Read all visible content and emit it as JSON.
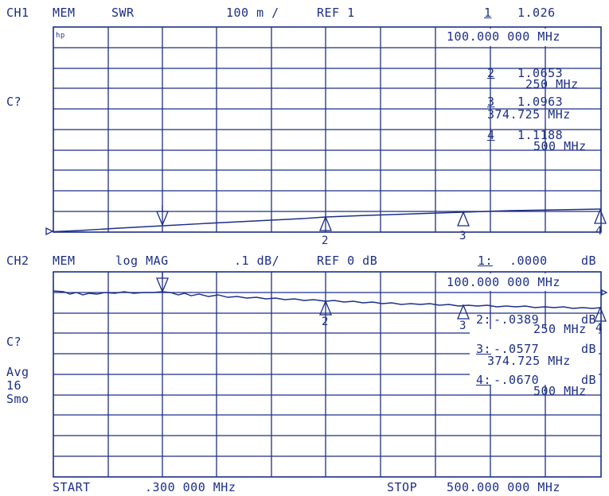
{
  "ch1": {
    "header": {
      "channel": "CH1",
      "mem": "MEM",
      "format": "SWR",
      "scale": "100 m /",
      "ref": "REF 1",
      "marker_no": "1",
      "marker_val": "1.026"
    },
    "active_freq": "100.000 000 MHz",
    "side_label": "C?",
    "logo": "hp",
    "markers": [
      {
        "no": "2",
        "val": "1.0653",
        "freq": "250 MHz"
      },
      {
        "no": "3",
        "val": "1.0963",
        "freq": "374.725 MHz"
      },
      {
        "no": "4",
        "val": "1.1188",
        "freq": "500 MHz"
      }
    ],
    "marker_labels": [
      "2",
      "3",
      "4"
    ]
  },
  "ch2": {
    "header": {
      "channel": "CH2",
      "mem": "MEM",
      "format": "log MAG",
      "scale": ".1 dB/",
      "ref": "REF 0 dB",
      "marker_no": "1:",
      "marker_val": ".0000",
      "marker_unit": "dB"
    },
    "active_freq": "100.000 000 MHz",
    "side_label": "C?",
    "avg_label": "Avg",
    "avg_value": "16",
    "smo_label": "Smo",
    "markers": [
      {
        "no": "2:",
        "val": "-.0389",
        "unit": "dB",
        "freq": "250 MHz"
      },
      {
        "no": "3:",
        "val": "-.0577",
        "unit": "dB",
        "freq": "374.725 MHz"
      },
      {
        "no": "4:",
        "val": "-.0670",
        "unit": "dB",
        "freq": "500 MHz"
      }
    ],
    "marker_labels": [
      "2",
      "3",
      "4"
    ]
  },
  "footer": {
    "start_label": "START",
    "start_val": ".300 000 MHz",
    "stop_label": "STOP",
    "stop_val": "500.000 000 MHz"
  },
  "colors": {
    "ink": "#1c2f86",
    "paper": "#ffffff"
  }
}
